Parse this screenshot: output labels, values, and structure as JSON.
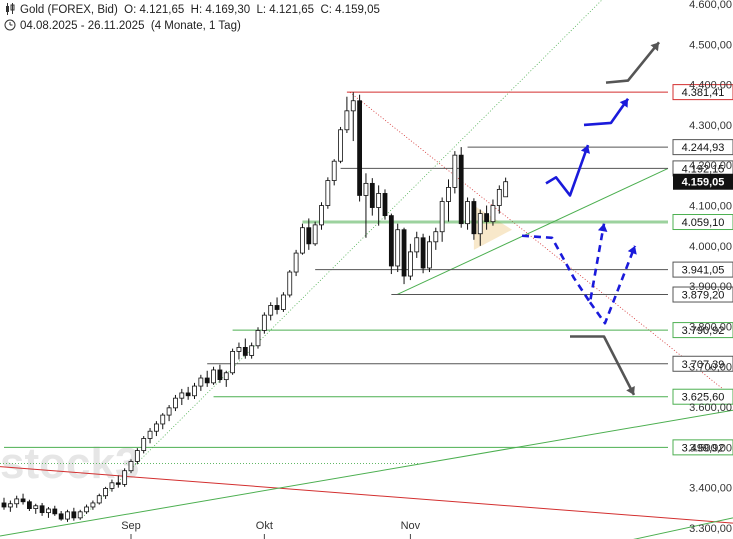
{
  "header": {
    "instrument_label": "Gold (FOREX, Bid)",
    "ohlc": "O: 4.121,65  H: 4.169,30  L: 4.121,65  C: 4.159,05",
    "range": "04.08.2025 - 26.11.2025",
    "range_detail": "(4 Monate, 1 Tag)",
    "icons": [
      "candlestick-icon",
      "clock-icon"
    ]
  },
  "watermark": "stock3",
  "colors": {
    "up": "#ffffff",
    "down": "#111111",
    "resistance": "#d32f2f",
    "support": "#4caf50",
    "neutral": "#555555",
    "scenario_bull": "#1a1adb",
    "scenario_bear": "#555555",
    "current_price_box": "#111111"
  },
  "chart_data": {
    "type": "candlestick",
    "title": "Gold (FOREX, Bid)",
    "ylim": [
      3280,
      4610
    ],
    "yticks": [
      {
        "value": 3300,
        "label": "3.300,00"
      },
      {
        "value": 3400,
        "label": "3.400,00"
      },
      {
        "value": 3500,
        "label": "3.500,00"
      },
      {
        "value": 3600,
        "label": "3.600,00"
      },
      {
        "value": 3700,
        "label": "3.700,00"
      },
      {
        "value": 3800,
        "label": "3.800,00"
      },
      {
        "value": 3900,
        "label": "3.900,00"
      },
      {
        "value": 4000,
        "label": "4.000,00"
      },
      {
        "value": 4100,
        "label": "4.100,00"
      },
      {
        "value": 4200,
        "label": "4.200,00"
      },
      {
        "value": 4300,
        "label": "4.300,00"
      },
      {
        "value": 4400,
        "label": "4.400,00"
      },
      {
        "value": 4500,
        "label": "4.500,00"
      },
      {
        "value": 4600,
        "label": "4.600,00"
      }
    ],
    "xticks": [
      {
        "index": 20,
        "label": "Sep"
      },
      {
        "index": 41,
        "label": "Okt"
      },
      {
        "index": 64,
        "label": "Nov"
      }
    ],
    "levels": [
      {
        "value": 4381.41,
        "label": "4.381,41",
        "kind": "resistance"
      },
      {
        "value": 4244.93,
        "label": "4.244,93",
        "kind": "neutral"
      },
      {
        "value": 4192.15,
        "label": "4.192,15",
        "kind": "neutral"
      },
      {
        "value": 4059.1,
        "label": "4.059,10",
        "kind": "support"
      },
      {
        "value": 3941.05,
        "label": "3.941,05",
        "kind": "neutral"
      },
      {
        "value": 3879.2,
        "label": "3.879,20",
        "kind": "neutral"
      },
      {
        "value": 3790.92,
        "label": "3.790,92",
        "kind": "support"
      },
      {
        "value": 3707.39,
        "label": "3.707,39",
        "kind": "neutral"
      },
      {
        "value": 3625.6,
        "label": "3.625,60",
        "kind": "support"
      },
      {
        "value": 3499.92,
        "label": "3.499,92",
        "kind": "support"
      }
    ],
    "current_price": {
      "value": 4159.05,
      "label": "4.159,05"
    },
    "candles": [
      [
        3362,
        3375,
        3345,
        3352
      ],
      [
        3352,
        3368,
        3340,
        3360
      ],
      [
        3360,
        3380,
        3350,
        3372
      ],
      [
        3372,
        3385,
        3358,
        3365
      ],
      [
        3365,
        3370,
        3342,
        3348
      ],
      [
        3348,
        3360,
        3335,
        3355
      ],
      [
        3355,
        3362,
        3330,
        3338
      ],
      [
        3338,
        3352,
        3325,
        3347
      ],
      [
        3347,
        3355,
        3330,
        3335
      ],
      [
        3335,
        3342,
        3318,
        3322
      ],
      [
        3322,
        3345,
        3315,
        3340
      ],
      [
        3340,
        3350,
        3318,
        3325
      ],
      [
        3325,
        3345,
        3320,
        3340
      ],
      [
        3340,
        3358,
        3335,
        3352
      ],
      [
        3352,
        3368,
        3345,
        3362
      ],
      [
        3362,
        3385,
        3358,
        3380
      ],
      [
        3380,
        3402,
        3372,
        3398
      ],
      [
        3398,
        3420,
        3390,
        3412
      ],
      [
        3412,
        3430,
        3400,
        3408
      ],
      [
        3408,
        3448,
        3402,
        3442
      ],
      [
        3442,
        3470,
        3436,
        3465
      ],
      [
        3465,
        3498,
        3458,
        3492
      ],
      [
        3492,
        3528,
        3485,
        3522
      ],
      [
        3522,
        3548,
        3510,
        3540
      ],
      [
        3540,
        3565,
        3528,
        3558
      ],
      [
        3558,
        3585,
        3545,
        3580
      ],
      [
        3580,
        3605,
        3565,
        3598
      ],
      [
        3598,
        3630,
        3590,
        3622
      ],
      [
        3622,
        3645,
        3605,
        3635
      ],
      [
        3635,
        3650,
        3618,
        3628
      ],
      [
        3628,
        3660,
        3620,
        3652
      ],
      [
        3652,
        3680,
        3640,
        3672
      ],
      [
        3672,
        3690,
        3650,
        3660
      ],
      [
        3660,
        3700,
        3655,
        3692
      ],
      [
        3692,
        3705,
        3660,
        3668
      ],
      [
        3668,
        3690,
        3650,
        3685
      ],
      [
        3685,
        3745,
        3680,
        3738
      ],
      [
        3738,
        3760,
        3718,
        3748
      ],
      [
        3748,
        3770,
        3720,
        3728
      ],
      [
        3728,
        3760,
        3720,
        3752
      ],
      [
        3752,
        3798,
        3745,
        3790
      ],
      [
        3790,
        3835,
        3782,
        3828
      ],
      [
        3828,
        3860,
        3815,
        3852
      ],
      [
        3852,
        3872,
        3830,
        3842
      ],
      [
        3842,
        3885,
        3836,
        3878
      ],
      [
        3878,
        3940,
        3872,
        3935
      ],
      [
        3935,
        3990,
        3925,
        3982
      ],
      [
        3982,
        4055,
        3978,
        4045
      ],
      [
        4045,
        4068,
        3990,
        4005
      ],
      [
        4005,
        4060,
        4000,
        4052
      ],
      [
        4052,
        4108,
        4040,
        4100
      ],
      [
        4100,
        4170,
        4092,
        4162
      ],
      [
        4162,
        4215,
        4150,
        4210
      ],
      [
        4210,
        4295,
        4205,
        4288
      ],
      [
        4288,
        4370,
        4280,
        4335
      ],
      [
        4335,
        4381,
        4260,
        4360
      ],
      [
        4360,
        4375,
        4110,
        4125
      ],
      [
        4125,
        4180,
        4020,
        4155
      ],
      [
        4155,
        4168,
        4075,
        4095
      ],
      [
        4095,
        4150,
        4050,
        4130
      ],
      [
        4130,
        4140,
        4065,
        4075
      ],
      [
        4075,
        4080,
        3930,
        3950
      ],
      [
        3950,
        4055,
        3935,
        4040
      ],
      [
        4040,
        4045,
        3905,
        3925
      ],
      [
        3925,
        4005,
        3915,
        3985
      ],
      [
        3985,
        4035,
        3970,
        4020
      ],
      [
        4020,
        4030,
        3932,
        3945
      ],
      [
        3945,
        4025,
        3935,
        4010
      ],
      [
        4010,
        4045,
        3990,
        4035
      ],
      [
        4035,
        4120,
        4010,
        4110
      ],
      [
        4110,
        4165,
        4060,
        4145
      ],
      [
        4145,
        4235,
        4130,
        4225
      ],
      [
        4225,
        4245,
        4045,
        4055
      ],
      [
        4055,
        4120,
        4040,
        4110
      ],
      [
        4110,
        4118,
        4015,
        4030
      ],
      [
        4030,
        4090,
        4000,
        4080
      ],
      [
        4080,
        4100,
        4040,
        4060
      ],
      [
        4060,
        4115,
        4050,
        4100
      ],
      [
        4100,
        4150,
        4080,
        4140
      ],
      [
        4121.65,
        4169.3,
        4121.65,
        4159.05
      ]
    ]
  }
}
